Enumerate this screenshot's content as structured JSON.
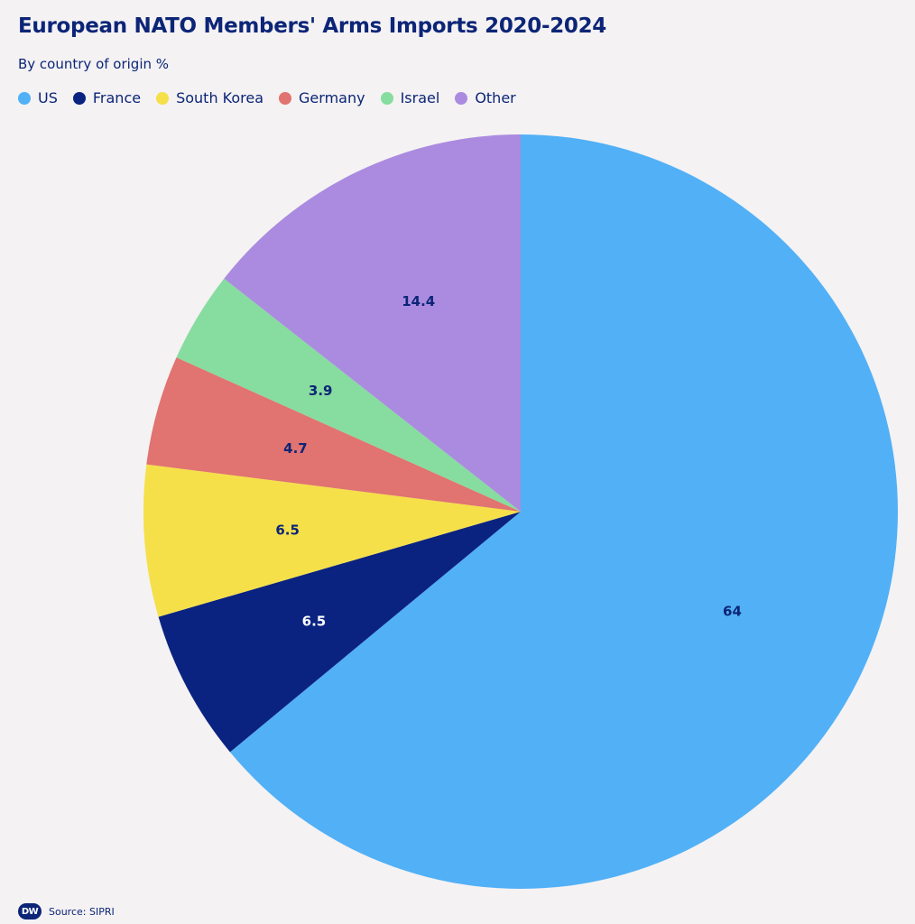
{
  "header": {
    "title": "European NATO Members' Arms Imports 2020-2024",
    "subtitle": "By country of origin %"
  },
  "chart_data": {
    "type": "pie",
    "categories": [
      "US",
      "France",
      "South Korea",
      "Germany",
      "Israel",
      "Other"
    ],
    "values": [
      64,
      6.5,
      6.5,
      4.7,
      3.9,
      14.4
    ],
    "labels": [
      "64",
      "6.5",
      "6.5",
      "4.7",
      "3.9",
      "14.4"
    ],
    "colors": [
      "#52b0f6",
      "#0a2380",
      "#f5e04a",
      "#e17370",
      "#87dc9f",
      "#ab8be0"
    ],
    "label_colors": [
      "#0c2577",
      "#ffffff",
      "#0c2577",
      "#0c2577",
      "#0c2577",
      "#0c2577"
    ],
    "start": "top, clockwise",
    "legend": "top-left"
  },
  "footer": {
    "logo": "DW",
    "source": "Source: SIPRI"
  }
}
